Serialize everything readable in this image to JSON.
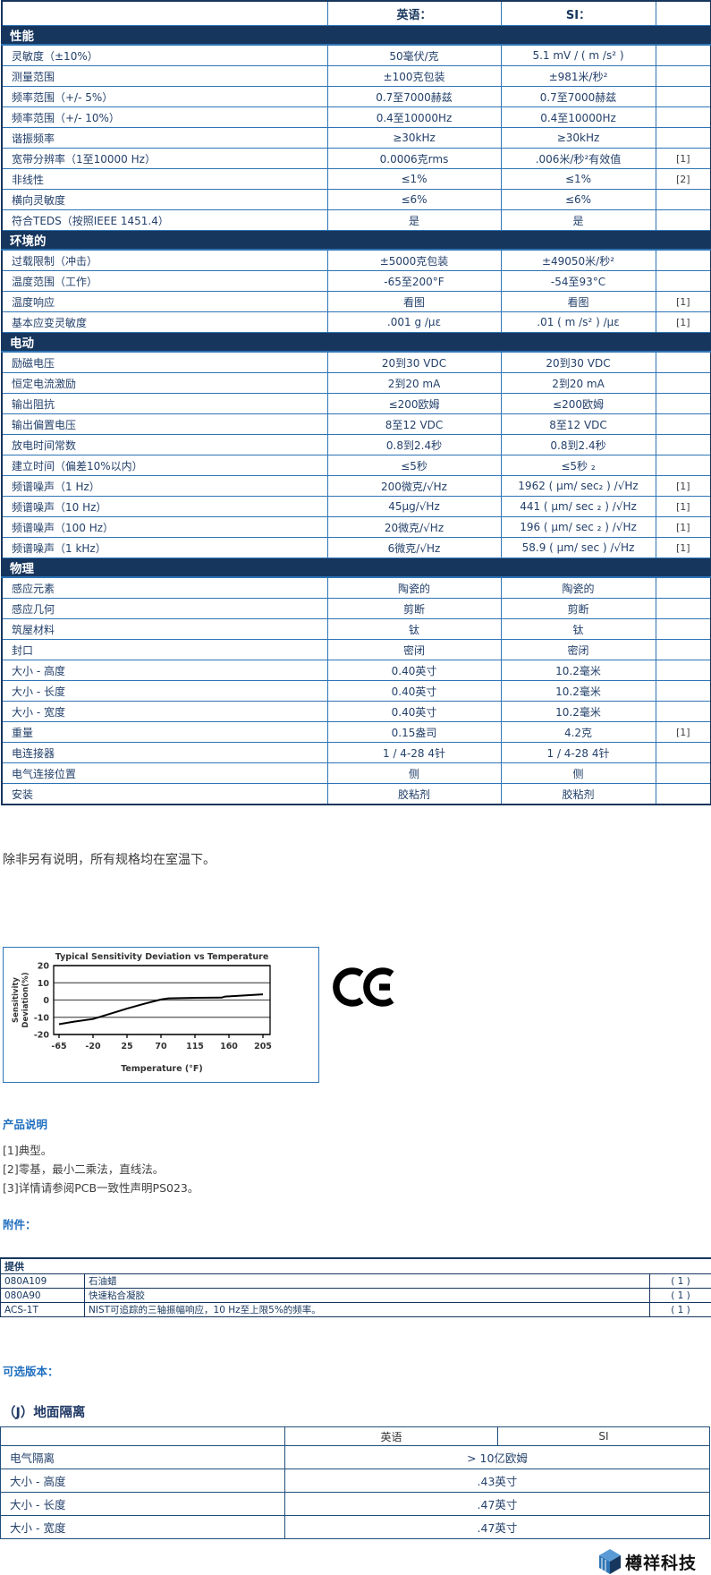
{
  "spec_table": {
    "col_headers": [
      "",
      "英语：",
      "SI：",
      ""
    ],
    "sections": [
      {
        "title": "性能",
        "rows": [
          {
            "label": "灵敏度（±10%）",
            "en": "50毫伏/克",
            "si": "5.1 mV / ( m /s² )",
            "note": ""
          },
          {
            "label": "测量范围",
            "en": "±100克包装",
            "si": "±981米/秒²",
            "note": ""
          },
          {
            "label": "频率范围（+/- 5%）",
            "en": "0.7至7000赫兹",
            "si": "0.7至7000赫兹",
            "note": ""
          },
          {
            "label": "频率范围（+/- 10%）",
            "en": "0.4至10000Hz",
            "si": "0.4至10000Hz",
            "note": ""
          },
          {
            "label": "谐振频率",
            "en": "≥30kHz",
            "si": "≥30kHz",
            "note": ""
          },
          {
            "label": "宽带分辨率（1至10000 Hz）",
            "en": "0.0006克rms",
            "si": ".006米/秒²有效值",
            "note": "[1]"
          },
          {
            "label": "非线性",
            "en": "≤1%",
            "si": "≤1%",
            "note": "[2]"
          },
          {
            "label": "横向灵敏度",
            "en": "≤6%",
            "si": "≤6%",
            "note": ""
          },
          {
            "label": "符合TEDS（按照IEEE 1451.4）",
            "en": "是",
            "si": "是",
            "note": ""
          }
        ]
      },
      {
        "title": "环境的",
        "rows": [
          {
            "label": "过载限制（冲击）",
            "en": "±5000克包装",
            "si": "±49050米/秒²",
            "note": ""
          },
          {
            "label": "温度范围（工作）",
            "en": "-65至200°F",
            "si": "-54至93°C",
            "note": ""
          },
          {
            "label": "温度响应",
            "en": "看图",
            "si": "看图",
            "note": "[1]"
          },
          {
            "label": "基本应变灵敏度",
            "en": ".001 g /με",
            "si": ".01 ( m /s² ) /με",
            "note": "[1]"
          }
        ]
      },
      {
        "title": "电动",
        "rows": [
          {
            "label": "励磁电压",
            "en": "20到30 VDC",
            "si": "20到30 VDC",
            "note": ""
          },
          {
            "label": "恒定电流激励",
            "en": "2到20 mA",
            "si": "2到20 mA",
            "note": ""
          },
          {
            "label": "输出阻抗",
            "en": "≤200欧姆",
            "si": "≤200欧姆",
            "note": ""
          },
          {
            "label": "输出偏置电压",
            "en": "8至12 VDC",
            "si": "8至12 VDC",
            "note": ""
          },
          {
            "label": "放电时间常数",
            "en": "0.8到2.4秒",
            "si": "0.8到2.4秒",
            "note": ""
          },
          {
            "label": "建立时间（偏差10%以内）",
            "en": "≤5秒",
            "si": "≤5秒 ₂",
            "note": ""
          },
          {
            "label": "频谱噪声（1 Hz）",
            "en": "200微克/√Hz",
            "si": "1962 ( μm/ sec₂ ) /√Hz",
            "note": "[1]"
          },
          {
            "label": "频谱噪声（10 Hz）",
            "en": "45μg/√Hz",
            "si": "441 ( μm/ sec ₂ ) /√Hz",
            "note": "[1]"
          },
          {
            "label": "频谱噪声（100 Hz）",
            "en": "20微克/√Hz",
            "si": "196 ( μm/ sec ₂ ) /√Hz",
            "note": "[1]"
          },
          {
            "label": "频谱噪声（1 kHz）",
            "en": "6微克/√Hz",
            "si": "58.9 ( μm/ sec  ) /√Hz",
            "note": "[1]"
          }
        ]
      },
      {
        "title": "物理",
        "rows": [
          {
            "label": "感应元素",
            "en": "陶瓷的",
            "si": "陶瓷的",
            "note": ""
          },
          {
            "label": "感应几何",
            "en": "剪断",
            "si": "剪断",
            "note": ""
          },
          {
            "label": "筑屋材料",
            "en": "钛",
            "si": "钛",
            "note": ""
          },
          {
            "label": "封口",
            "en": "密闭",
            "si": "密闭",
            "note": ""
          },
          {
            "label": "大小 - 高度",
            "en": "0.40英寸",
            "si": "10.2毫米",
            "note": ""
          },
          {
            "label": "大小 - 长度",
            "en": "0.40英寸",
            "si": "10.2毫米",
            "note": ""
          },
          {
            "label": "大小 - 宽度",
            "en": "0.40英寸",
            "si": "10.2毫米",
            "note": ""
          },
          {
            "label": "重量",
            "en": "0.15盎司",
            "si": "4.2克",
            "note": "[1]"
          },
          {
            "label": "电连接器",
            "en": "1 / 4-28 4针",
            "si": "1 / 4-28 4针",
            "note": ""
          },
          {
            "label": "电气连接位置",
            "en": "侧",
            "si": "侧",
            "note": ""
          },
          {
            "label": "安装",
            "en": "胶粘剂",
            "si": "胶粘剂",
            "note": ""
          }
        ]
      }
    ]
  },
  "room_note": "除非另有说明，所有规格均在室温下。",
  "chart_data": {
    "type": "line",
    "title": "Typical Sensitivity Deviation vs Temperature",
    "xlabel": "Temperature (°F)",
    "ylabel_lines": [
      "Sensitivity",
      "Deviation(%)"
    ],
    "xlim": [
      -65,
      205
    ],
    "ylim": [
      -20,
      20
    ],
    "xticks": [
      -65,
      -20,
      25,
      70,
      115,
      160,
      205
    ],
    "yticks": [
      20,
      10,
      0,
      -10,
      -20
    ],
    "grid": true,
    "legend": "none",
    "points": [
      [
        -65,
        -14
      ],
      [
        -45,
        -12.5
      ],
      [
        -20,
        -11
      ],
      [
        -5,
        -9
      ],
      [
        25,
        -5
      ],
      [
        45,
        -2.5
      ],
      [
        70,
        0.3
      ],
      [
        80,
        1
      ],
      [
        115,
        1.3
      ],
      [
        150,
        1.4
      ],
      [
        155,
        2
      ],
      [
        185,
        2.8
      ],
      [
        205,
        3.3
      ]
    ]
  },
  "product_notes": {
    "title": "产品说明",
    "items": [
      "[1]典型。",
      "[2]零基，最小二乘法，直线法。",
      "[3]详情请参阅PCB一致性声明PS023。"
    ]
  },
  "accessories": {
    "title": "附件：",
    "header": "提供",
    "rows": [
      {
        "part": "080A109",
        "desc": "石油蜡",
        "qty": "( 1 )"
      },
      {
        "part": "080A90",
        "desc": "快速粘合凝胶",
        "qty": "( 1 )"
      },
      {
        "part": "ACS-1T",
        "desc": "NIST可追踪的三轴振幅响应，10 Hz至上限5%的频率。",
        "qty": "( 1 )"
      }
    ]
  },
  "optional_versions": {
    "title": "可选版本："
  },
  "ground_isolation": {
    "title": "（J）地面隔离",
    "col_headers": [
      "英语",
      "SI"
    ],
    "rows": [
      {
        "label": "电气隔离",
        "value": "> 10亿欧姆"
      },
      {
        "label": "大小 - 高度",
        "value": ".43英寸"
      },
      {
        "label": "大小 - 长度",
        "value": ".47英寸"
      },
      {
        "label": "大小 - 宽度",
        "value": ".47英寸"
      }
    ]
  },
  "logo": {
    "text": "樽祥科技"
  },
  "colors": {
    "band_bg": "#17365D",
    "grid_border": "#2E74B5",
    "cell_text": "#24416B",
    "blue_heading": "#2170C0",
    "logo_blue_light": "#5B9BD5",
    "logo_blue_mid": "#2E74B5",
    "logo_blue_dark": "#17365D"
  }
}
